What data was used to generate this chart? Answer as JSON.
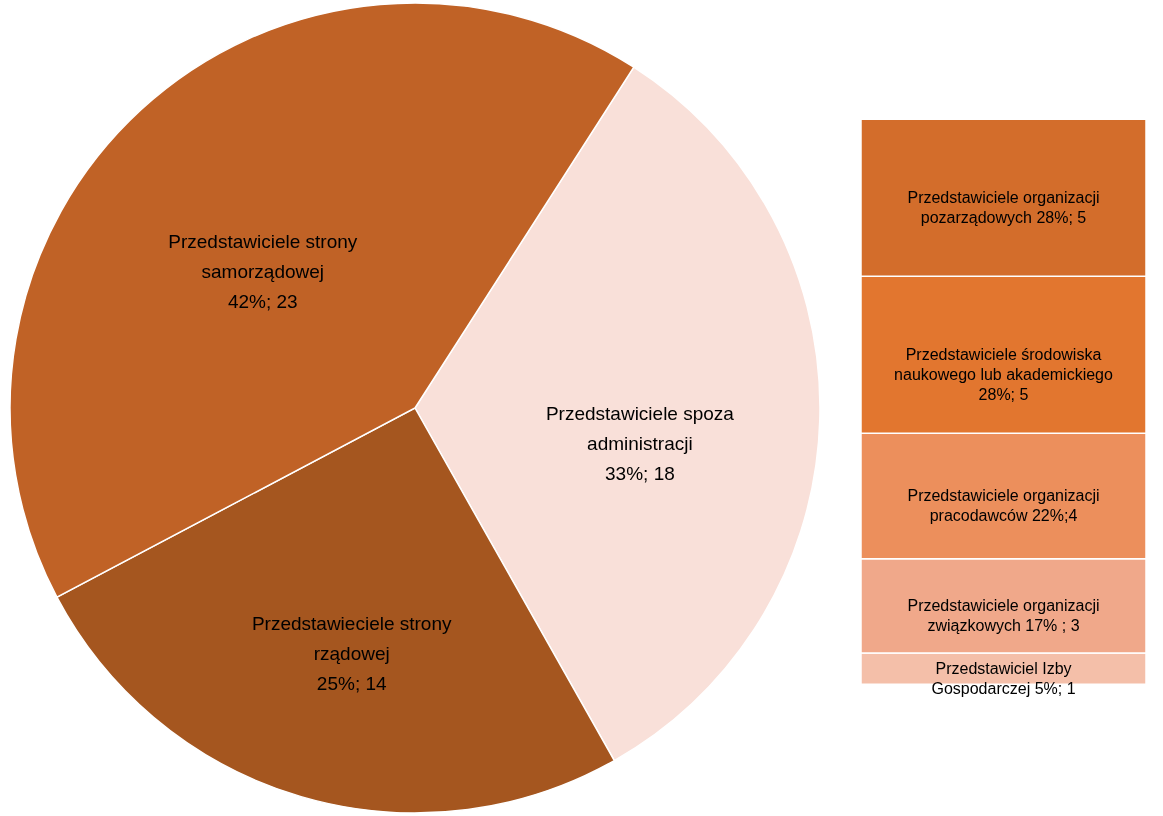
{
  "chart_data": [
    {
      "type": "pie",
      "categories": [
        "Przedstawiciele spoza administracji",
        "Przedstawieciele strony rządowej",
        "Przedstawiciele strony samorządowej"
      ],
      "values": [
        18,
        14,
        23
      ],
      "value_labels": [
        "33%; 18",
        "25%; 14",
        "42%; 23"
      ],
      "colors": [
        "#f9e0d9",
        "#a5561f",
        "#c06226"
      ]
    },
    {
      "type": "bar",
      "stacked": true,
      "categories": [
        null
      ],
      "series": [
        {
          "color": "#f4bfa9",
          "values": [
            1
          ],
          "value_labels": [
            "Przedstawiciel Izby Gospodarczej 5%; 1"
          ]
        },
        {
          "color": "#f0a88a",
          "values": [
            3
          ],
          "value_labels": [
            "Przedstawiciele organizacji związkowych 17% ; 3"
          ]
        },
        {
          "color": "#ec8f5c",
          "values": [
            4
          ],
          "value_labels": [
            "Przedstawiciele organizacji pracodawców 22%;4"
          ]
        },
        {
          "color": "#e2762f",
          "values": [
            5
          ],
          "value_labels": [
            "Przedstawiciele środowiska naukowego lub akademickiego 28%; 5"
          ]
        },
        {
          "color": "#d36d2b",
          "values": [
            5
          ],
          "value_labels": [
            "Przedstawiciele organizacji pozarządowych 28%; 5"
          ]
        }
      ]
    }
  ]
}
